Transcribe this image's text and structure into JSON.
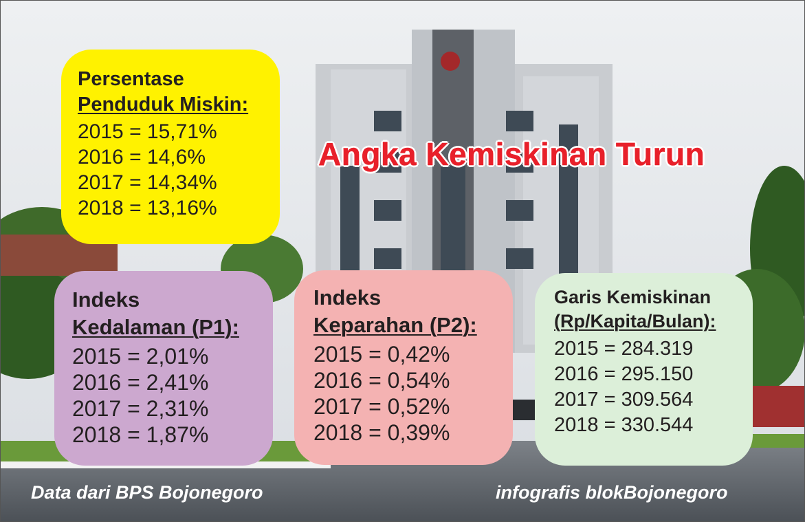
{
  "headline": "Angka Kemiskinan Turun",
  "cards": {
    "poverty_rate": {
      "title_line1": "Persentase",
      "title_line2": "Penduduk Miskin:",
      "rows": [
        "2015 = 15,71%",
        "2016 = 14,6%",
        "2017 = 14,34%",
        "2018 = 13,16%"
      ],
      "color": "#fff200"
    },
    "depth_index": {
      "title_line1": "Indeks",
      "title_line2": "Kedalaman (P1):",
      "rows": [
        "2015 = 2,01%",
        "2016 = 2,41%",
        "2017 = 2,31%",
        "2018 = 1,87%"
      ],
      "color": "#cca8cf"
    },
    "severity_index": {
      "title_line1": "Indeks",
      "title_line2": "Keparahan (P2):",
      "rows": [
        "2015 = 0,42%",
        "2016 = 0,54%",
        "2017 = 0,52%",
        "2018 = 0,39%"
      ],
      "color": "#f4b2b2"
    },
    "poverty_line": {
      "title_line1": "Garis Kemiskinan",
      "title_line2": "(Rp/Kapita/Bulan):",
      "rows": [
        "2015 = 284.319",
        "2016 = 295.150",
        "2017 = 309.564",
        "2018 = 330.544"
      ],
      "color": "#dcefd9"
    }
  },
  "footer": {
    "source": "Data dari BPS Bojonegoro",
    "credit": "infografis blokBojonegoro"
  },
  "colors": {
    "headline": "#e8202a",
    "text": "#231f20",
    "footer_text": "#ffffff"
  }
}
